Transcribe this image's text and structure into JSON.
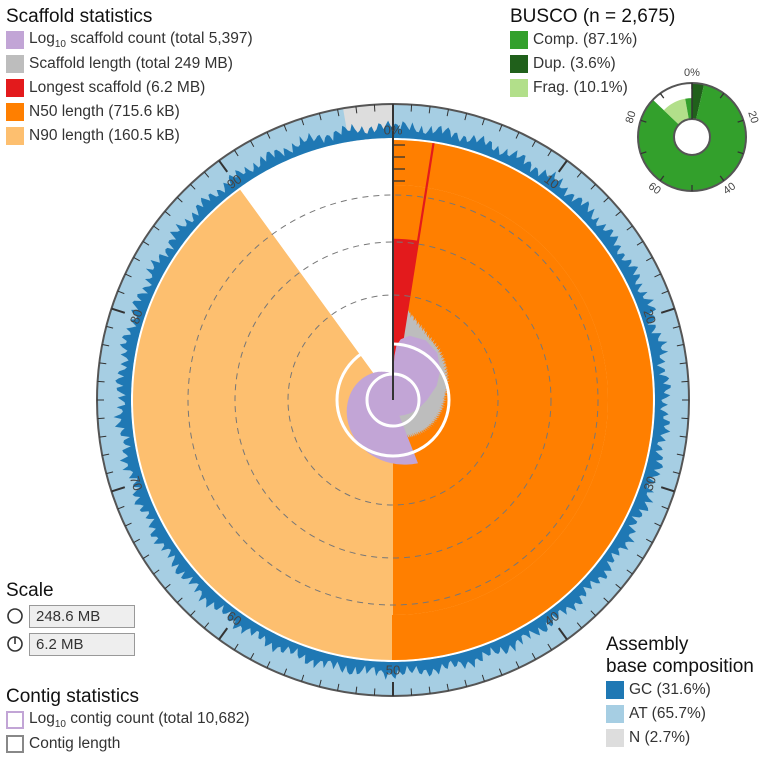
{
  "scaffold_stats": {
    "title": "Scaffold statistics",
    "items": [
      {
        "prefix": "Log",
        "sub": "10",
        "suffix": " scaffold count (total 5,397)",
        "color": "#c2a5d6"
      },
      {
        "prefix": "Scaffold length (total 249 MB)",
        "color": "#bdbdbd"
      },
      {
        "prefix": "Longest scaffold (6.2 MB)",
        "color": "#e31a1c"
      },
      {
        "prefix": "N50 length (715.6 kB)",
        "color": "#ff7f00"
      },
      {
        "prefix": "N90 length (160.5 kB)",
        "color": "#fdbf6f"
      }
    ]
  },
  "busco": {
    "title": "BUSCO (n = 2,675)",
    "items": [
      {
        "label": "Comp. (87.1%)",
        "color": "#33a02c"
      },
      {
        "label": "Dup. (3.6%)",
        "color": "#20601b"
      },
      {
        "label": "Frag. (10.1%)",
        "color": "#b2df8a"
      }
    ],
    "ticks": [
      "0%",
      "20",
      "40",
      "60",
      "80"
    ]
  },
  "scale": {
    "title": "Scale",
    "items": [
      "248.6 MB",
      "6.2 MB"
    ]
  },
  "contig_stats": {
    "title": "Contig statistics",
    "items": [
      {
        "prefix": "Log",
        "sub": "10",
        "suffix": " contig count (total 10,682)",
        "color": "#c2a5d6"
      },
      {
        "prefix": "Contig length",
        "color": "#888888"
      }
    ]
  },
  "composition": {
    "title_line1": "Assembly",
    "title_line2": "base composition",
    "items": [
      {
        "label": "GC (31.6%)",
        "color": "#1f78b4"
      },
      {
        "label": "AT (65.7%)",
        "color": "#a6cee3"
      },
      {
        "label": "N (2.7%)",
        "color": "#dddddd"
      }
    ]
  },
  "chart_data": {
    "type": "snail",
    "main_ticks": [
      "0%",
      "10",
      "20",
      "30",
      "40",
      "50",
      "60",
      "70",
      "80",
      "90"
    ],
    "total_scaffolds": 5397,
    "total_length_mb": 249,
    "longest_scaffold_mb": 6.2,
    "n50_kb": 715.6,
    "n90_kb": 160.5,
    "n50_percent": 50,
    "n90_percent": 90,
    "busco": {
      "complete": 87.1,
      "duplicated": 3.6,
      "fragmented": 10.1,
      "total": 2675
    },
    "composition": {
      "gc": 31.6,
      "at": 65.7,
      "n": 2.7
    },
    "scaffold_length_curve": [
      [
        0,
        100
      ],
      [
        0.05,
        60
      ],
      [
        0.3,
        45
      ],
      [
        0.5,
        40
      ],
      [
        1,
        38
      ],
      [
        2,
        36
      ],
      [
        3,
        34
      ],
      [
        5,
        31
      ],
      [
        8,
        28
      ],
      [
        12,
        26
      ],
      [
        16,
        24
      ],
      [
        20,
        22
      ],
      [
        24,
        20
      ],
      [
        28,
        19
      ],
      [
        32,
        18
      ],
      [
        36,
        17
      ],
      [
        40,
        16
      ],
      [
        45,
        15
      ],
      [
        50,
        13
      ],
      [
        55,
        12
      ],
      [
        60,
        11
      ],
      [
        65,
        10
      ],
      [
        70,
        9
      ],
      [
        75,
        8
      ],
      [
        80,
        6
      ],
      [
        85,
        4
      ],
      [
        88,
        2.5
      ],
      [
        90,
        1.5
      ],
      [
        93,
        1
      ],
      [
        96,
        0.6
      ],
      [
        99,
        0.3
      ],
      [
        100,
        0.2
      ]
    ],
    "scaffold_count_curve": [
      [
        0,
        0
      ],
      [
        0.1,
        15
      ],
      [
        0.5,
        26
      ],
      [
        1,
        32
      ],
      [
        2,
        36
      ],
      [
        4,
        39
      ],
      [
        8,
        40
      ],
      [
        12,
        38
      ],
      [
        16,
        33
      ],
      [
        20,
        27
      ],
      [
        25,
        20
      ],
      [
        30,
        16
      ],
      [
        35,
        13
      ],
      [
        40,
        11
      ],
      [
        44,
        10
      ]
    ]
  }
}
